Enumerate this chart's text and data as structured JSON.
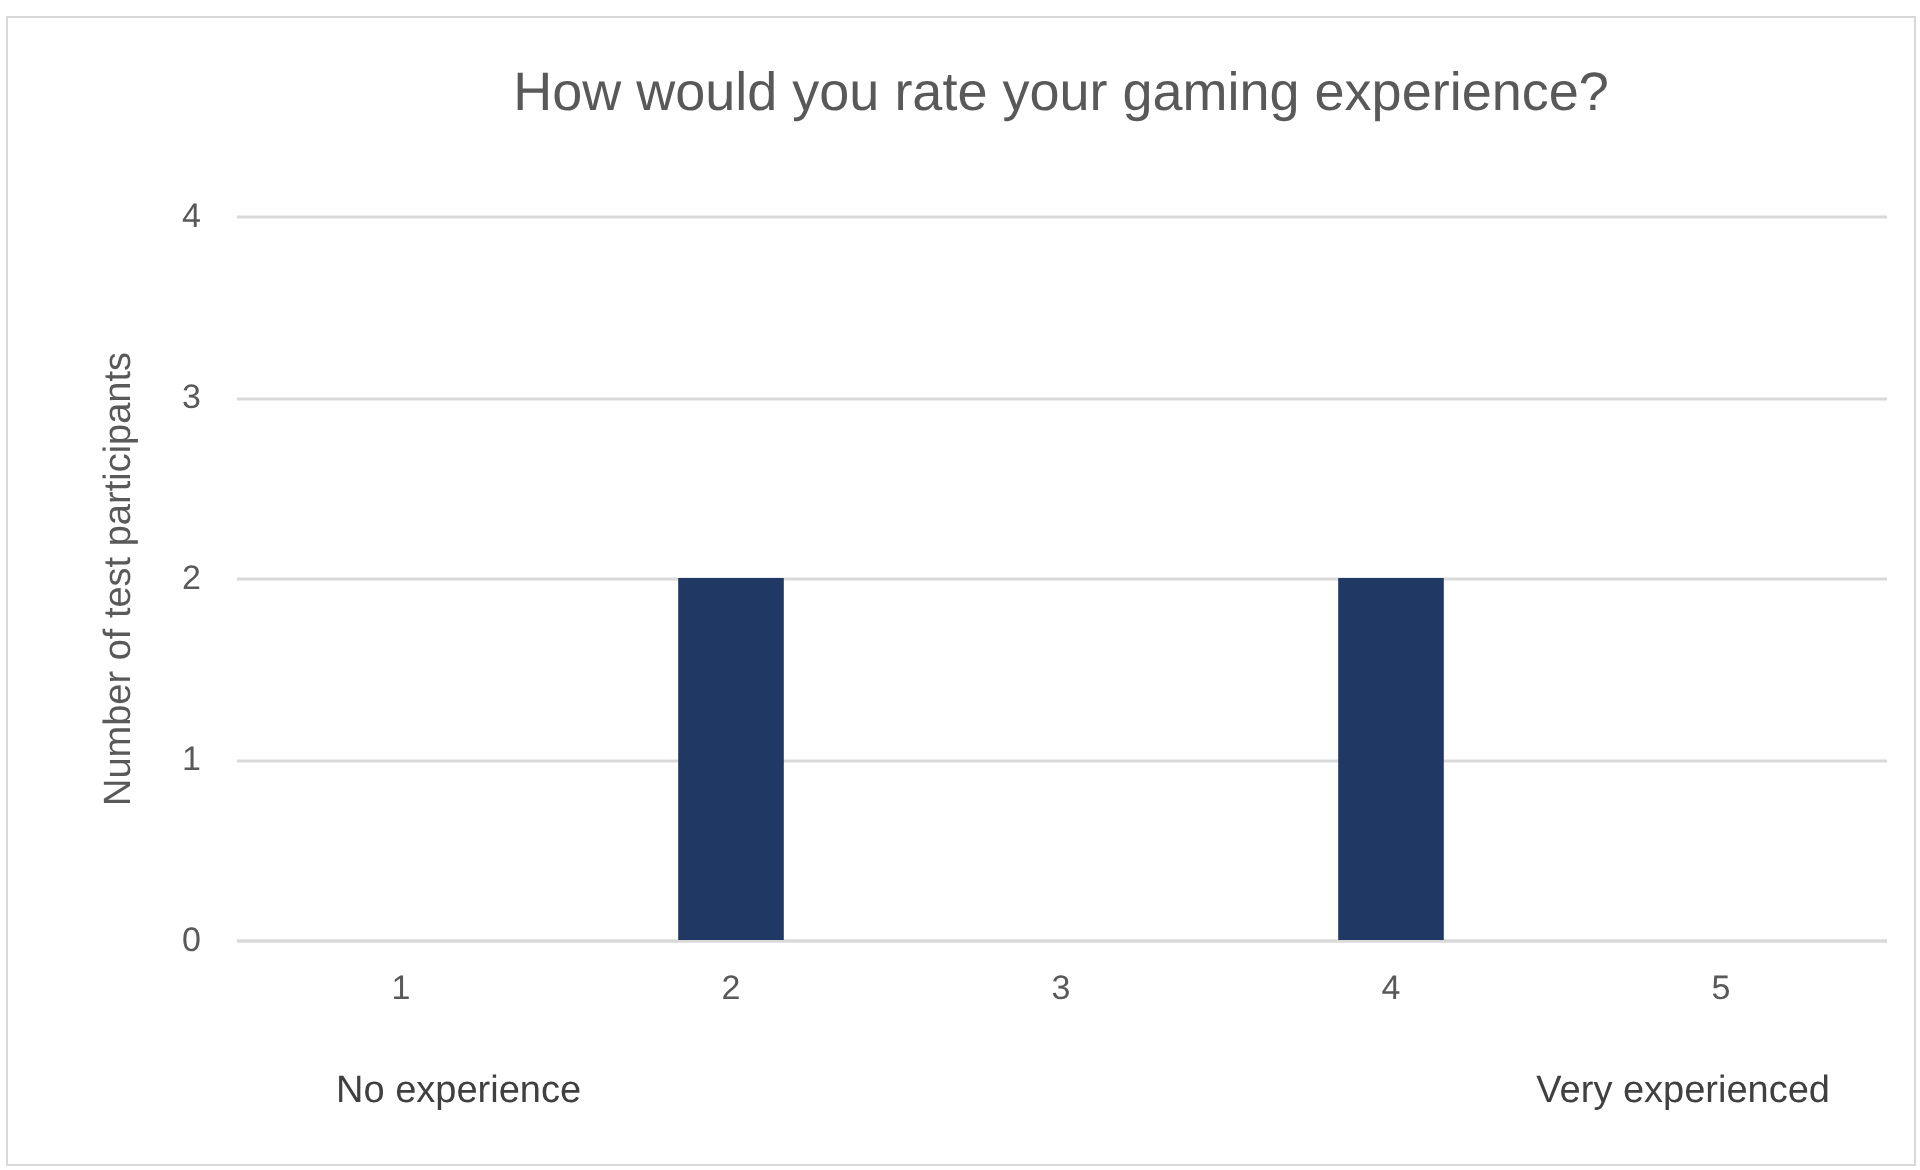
{
  "chart_data": {
    "type": "bar",
    "title": "How would you rate your gaming experience?",
    "ylabel": "Number of test participants",
    "categories": [
      "1",
      "2",
      "3",
      "4",
      "5"
    ],
    "values": [
      0,
      2,
      0,
      2,
      0
    ],
    "color": "#203864",
    "ylim": [
      0,
      4
    ],
    "yticks": [
      0,
      1,
      2,
      3,
      4
    ],
    "grid": "y",
    "annotations": [
      "No experience",
      "Very experienced"
    ]
  }
}
